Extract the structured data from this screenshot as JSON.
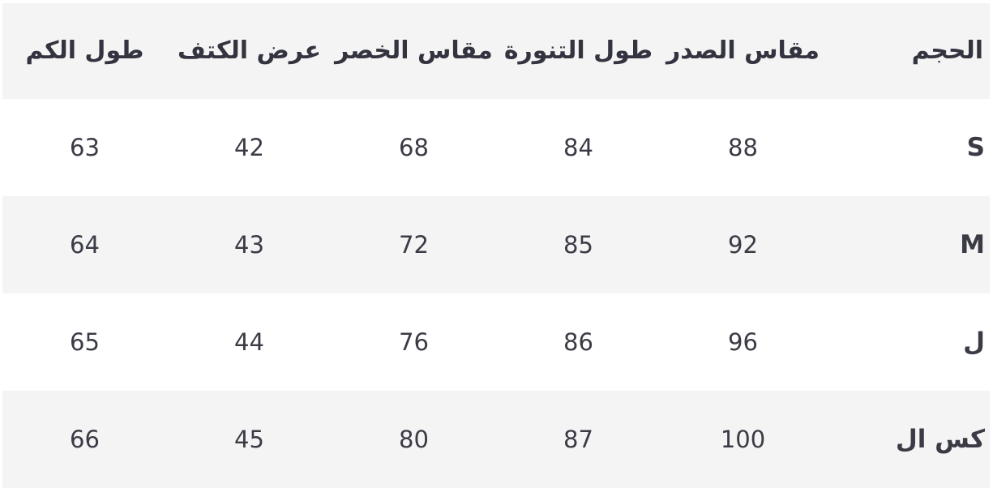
{
  "headers": [
    "الحجم",
    "مقاس الصدر",
    "طول التنورة",
    "مقاس الخصر",
    "عرض الكتف",
    "طول الكم"
  ],
  "rows": [
    {
      "size": "S",
      "values": [
        "88",
        "84",
        "68",
        "42",
        "63"
      ]
    },
    {
      "size": "M",
      "values": [
        "92",
        "85",
        "72",
        "43",
        "64"
      ]
    },
    {
      "size": "ل",
      "values": [
        "96",
        "86",
        "76",
        "44",
        "65"
      ]
    },
    {
      "size": "كس ال",
      "values": [
        "100",
        "87",
        "80",
        "45",
        "66"
      ]
    }
  ],
  "colors": {
    "stripe": "#f4f4f4",
    "text": "#33343f"
  }
}
